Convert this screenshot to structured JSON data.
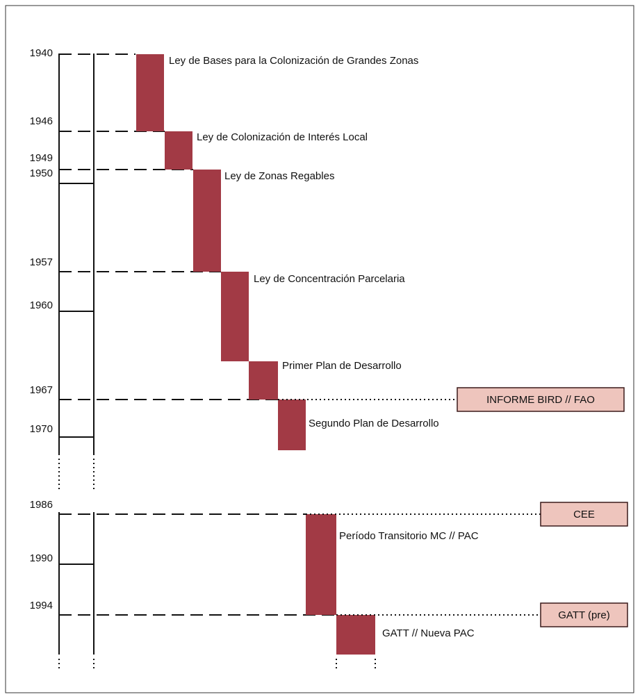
{
  "years": [
    1940,
    1946,
    1949,
    1950,
    1957,
    1960,
    1967,
    1970,
    1986,
    1990,
    1994
  ],
  "events": [
    {
      "label": "Ley de Bases para la Colonización de Grandes Zonas"
    },
    {
      "label": "Ley de Colonización de Interés Local"
    },
    {
      "label": "Ley de Zonas Regables"
    },
    {
      "label": "Ley de Concentración Parcelaria"
    },
    {
      "label": "Primer Plan de Desarrollo"
    },
    {
      "label": "Segundo Plan de Desarrollo"
    },
    {
      "label": "Período Transitorio MC // PAC"
    },
    {
      "label": "GATT // Nueva PAC"
    }
  ],
  "milestones": [
    {
      "label": "INFORME BIRD // FAO"
    },
    {
      "label": "CEE"
    },
    {
      "label": "GATT (pre)"
    }
  ]
}
